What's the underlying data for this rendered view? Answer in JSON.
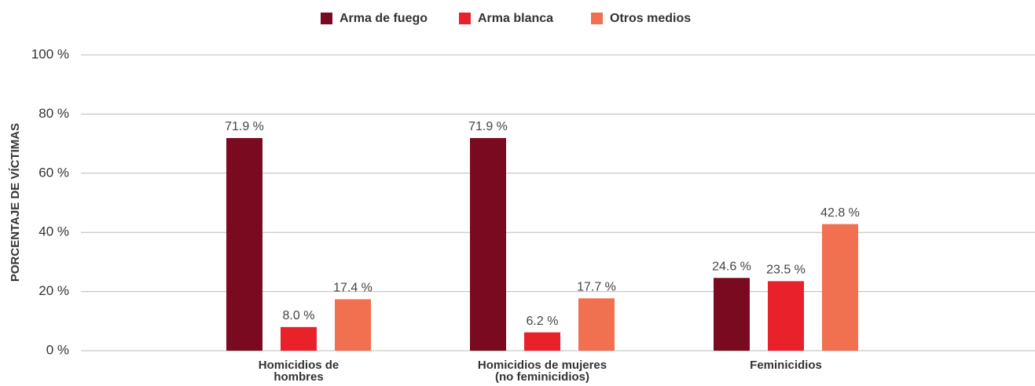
{
  "chart_data": {
    "type": "bar",
    "y_label": "PORCENTAJE DE VÍCTIMAS",
    "categories": [
      "Homicidios de\nhombres",
      "Homicidios de mujeres\n(no feminicidios)",
      "Feminicidios"
    ],
    "series": [
      {
        "name": "Arma de fuego",
        "color": "#7a0a1f",
        "values": [
          71.9,
          71.9,
          24.6
        ],
        "value_labels": [
          "71.9 %",
          "71.9 %",
          "24.6 %"
        ]
      },
      {
        "name": "Arma blanca",
        "color": "#e8212b",
        "values": [
          8.0,
          6.2,
          23.5
        ],
        "value_labels": [
          "8.0 %",
          "6.2 %",
          "23.5 %"
        ]
      },
      {
        "name": "Otros medios",
        "color": "#f07050",
        "values": [
          17.4,
          17.7,
          42.8
        ],
        "value_labels": [
          "17.4 %",
          "17.7 %",
          "42.8 %"
        ]
      }
    ],
    "ylim": [
      0,
      100
    ],
    "yticks": [
      {
        "value": 0,
        "label": "0 %"
      },
      {
        "value": 20,
        "label": "20 %"
      },
      {
        "value": 40,
        "label": "40 %"
      },
      {
        "value": 60,
        "label": "60 %"
      },
      {
        "value": 80,
        "label": "80 %"
      },
      {
        "value": 100,
        "label": "100 %"
      }
    ],
    "grid": true,
    "legend": "top"
  }
}
